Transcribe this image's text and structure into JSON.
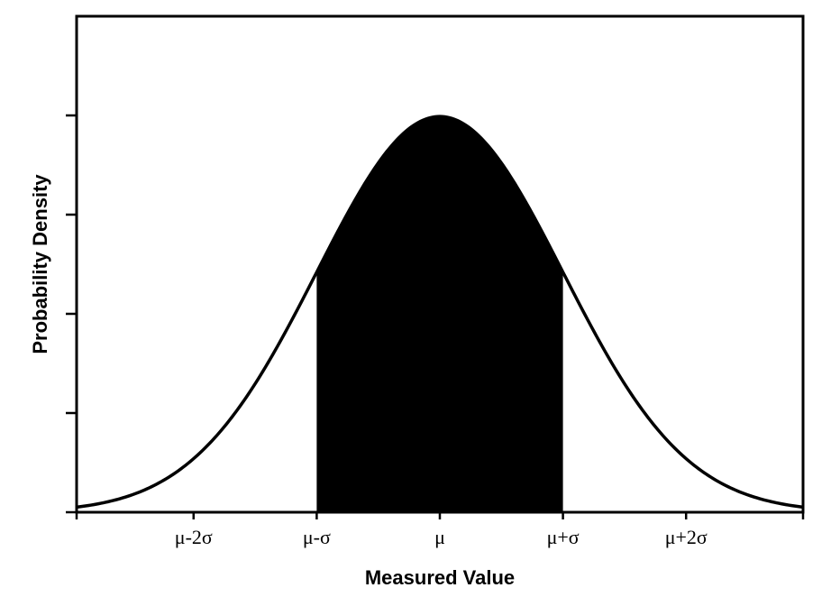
{
  "chart_data": {
    "type": "area",
    "title": "",
    "xlabel": "Measured Value",
    "ylabel": "Probability Density",
    "xlim": [
      -2.95,
      2.95
    ],
    "ylim": [
      0,
      0.5
    ],
    "mean": 0,
    "sd": 1,
    "shaded_interval": [
      -1,
      1
    ],
    "x_ticks": [
      {
        "value": -2,
        "label": "μ-2σ"
      },
      {
        "value": -1,
        "label": "μ-σ"
      },
      {
        "value": 0,
        "label": "μ"
      },
      {
        "value": 1,
        "label": "μ+σ"
      },
      {
        "value": 2,
        "label": "μ+2σ"
      }
    ],
    "y_ticks": [
      0,
      0.1,
      0.2,
      0.3,
      0.4
    ],
    "grid": false,
    "legend": "none",
    "colors": {
      "curve": "#000000",
      "fill": "#000000",
      "frame": "#000000"
    }
  }
}
